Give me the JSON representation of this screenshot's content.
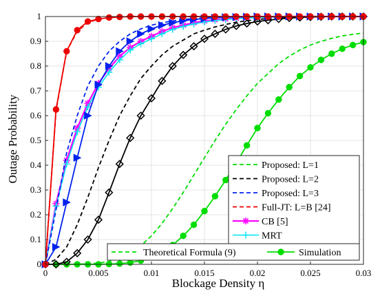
{
  "chart_data": {
    "type": "line",
    "xlabel": "Blockage Density η",
    "ylabel": "Outage Probability",
    "xlim": [
      0,
      0.03
    ],
    "ylim": [
      0,
      1
    ],
    "grid": true,
    "xticks": [
      "0",
      "0.005",
      "0.01",
      "0.015",
      "0.02",
      "0.025",
      "0.03"
    ],
    "yticks": [
      "0",
      "0.1",
      "0.2",
      "0.3",
      "0.4",
      "0.5",
      "0.6",
      "0.7",
      "0.8",
      "0.9",
      "1"
    ],
    "x": [
      0,
      0.001,
      0.002,
      0.003,
      0.004,
      0.005,
      0.006,
      0.007,
      0.008,
      0.009,
      0.01,
      0.011,
      0.012,
      0.013,
      0.014,
      0.015,
      0.016,
      0.017,
      0.018,
      0.019,
      0.02,
      0.021,
      0.022,
      0.023,
      0.024,
      0.025,
      0.026,
      0.027,
      0.028,
      0.029,
      0.03
    ],
    "series": [
      {
        "name": "Proposed: L=1",
        "color": "#00dd00",
        "theory": [
          0,
          0,
          0,
          0.001,
          0.002,
          0.005,
          0.012,
          0.025,
          0.045,
          0.075,
          0.115,
          0.165,
          0.225,
          0.29,
          0.36,
          0.43,
          0.5,
          0.565,
          0.625,
          0.68,
          0.73,
          0.77,
          0.81,
          0.84,
          0.865,
          0.885,
          0.9,
          0.912,
          0.922,
          0.928,
          0.933
        ],
        "simulation": [
          0,
          0,
          0,
          0,
          0,
          0,
          0.001,
          0.003,
          0.007,
          0.015,
          0.03,
          0.05,
          0.078,
          0.115,
          0.16,
          0.215,
          0.275,
          0.34,
          0.41,
          0.48,
          0.55,
          0.61,
          0.665,
          0.715,
          0.76,
          0.795,
          0.825,
          0.85,
          0.87,
          0.885,
          0.897
        ]
      },
      {
        "name": "Proposed: L=2",
        "color": "#000000",
        "theory": [
          0,
          0.02,
          0.07,
          0.16,
          0.27,
          0.39,
          0.5,
          0.6,
          0.68,
          0.75,
          0.8,
          0.845,
          0.88,
          0.905,
          0.93,
          0.945,
          0.958,
          0.968,
          0.977,
          0.983,
          0.988,
          0.992,
          0.995,
          0.997,
          0.998,
          0.999,
          1,
          1,
          1,
          1,
          1
        ],
        "simulation": [
          0,
          0,
          0.01,
          0.045,
          0.1,
          0.18,
          0.29,
          0.405,
          0.51,
          0.6,
          0.67,
          0.74,
          0.8,
          0.845,
          0.88,
          0.91,
          0.93,
          0.948,
          0.962,
          0.972,
          0.98,
          0.985,
          0.99,
          0.994,
          0.996,
          0.998,
          0.999,
          1,
          1,
          1,
          1
        ]
      },
      {
        "name": "Proposed: L=3",
        "color": "#0022ee",
        "theory": [
          0,
          0.22,
          0.45,
          0.6,
          0.72,
          0.8,
          0.86,
          0.9,
          0.93,
          0.95,
          0.965,
          0.975,
          0.982,
          0.988,
          0.992,
          0.995,
          0.997,
          0.998,
          0.999,
          1,
          1,
          1,
          1,
          1,
          1,
          1,
          1,
          1,
          1,
          1,
          1
        ],
        "simulation": [
          0,
          0.07,
          0.25,
          0.43,
          0.6,
          0.725,
          0.8,
          0.86,
          0.9,
          0.93,
          0.95,
          0.965,
          0.975,
          0.983,
          0.988,
          0.992,
          0.995,
          0.997,
          0.998,
          0.999,
          1,
          1,
          1,
          1,
          1,
          1,
          1,
          1,
          1,
          1,
          1
        ]
      },
      {
        "name": "Full-JT: L=B [24]",
        "color": "#ee0000",
        "theory": [
          0,
          0.62,
          0.86,
          0.94,
          0.975,
          0.99,
          0.995,
          0.998,
          1,
          1,
          1,
          1,
          1,
          1,
          1,
          1,
          1,
          1,
          1,
          1,
          1,
          1,
          1,
          1,
          1,
          1,
          1,
          1,
          1,
          1,
          1
        ],
        "simulation": [
          0,
          0.625,
          0.86,
          0.945,
          0.98,
          0.99,
          0.996,
          0.998,
          1,
          1,
          1,
          1,
          1,
          1,
          1,
          1,
          1,
          1,
          1,
          1,
          1,
          1,
          1,
          1,
          1,
          1,
          1,
          1,
          1,
          1,
          1
        ]
      },
      {
        "name": "CB [5]",
        "color": "#ff00ff",
        "values": [
          0,
          0.245,
          0.42,
          0.55,
          0.65,
          0.73,
          0.79,
          0.84,
          0.875,
          0.9,
          0.92,
          0.94,
          0.955,
          0.965,
          0.975,
          0.982,
          0.987,
          0.99,
          0.993,
          0.995,
          0.997,
          0.998,
          0.999,
          1,
          1,
          1,
          1,
          1,
          1,
          1,
          1
        ]
      },
      {
        "name": "MRT",
        "color": "#00e5ee",
        "values": [
          0,
          0.235,
          0.405,
          0.535,
          0.635,
          0.715,
          0.775,
          0.825,
          0.865,
          0.89,
          0.91,
          0.93,
          0.948,
          0.96,
          0.97,
          0.978,
          0.984,
          0.988,
          0.992,
          0.994,
          0.996,
          0.998,
          0.999,
          1,
          1,
          1,
          1,
          1,
          1,
          1,
          1
        ]
      }
    ],
    "legend": {
      "entries": [
        "Proposed: L=1",
        "Proposed: L=2",
        "Proposed: L=3",
        "Full-JT: L=B [24]",
        "CB [5]",
        "MRT"
      ],
      "style_entries": [
        "Theoretical Formula (9)",
        "Simulation"
      ],
      "placement": "lower-right"
    }
  }
}
